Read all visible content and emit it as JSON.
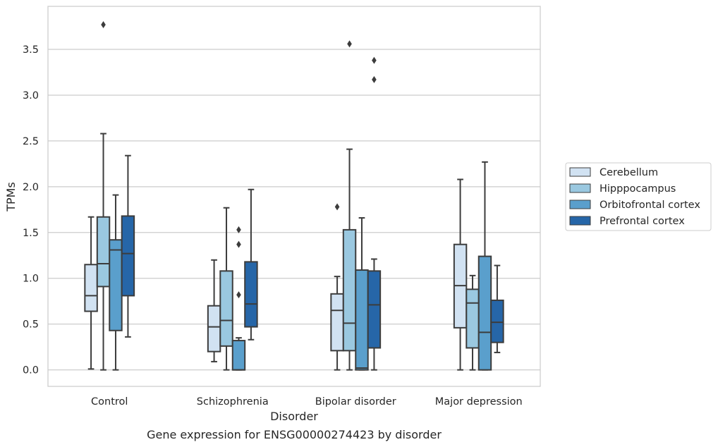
{
  "chart_data": {
    "type": "box",
    "caption": "Gene expression for ENSG00000274423 by disorder",
    "xlabel": "Disorder",
    "ylabel": "TPMs",
    "ylim": [
      -0.18,
      3.97
    ],
    "yticks": [
      "0.0",
      "0.5",
      "1.0",
      "1.5",
      "2.0",
      "2.5",
      "3.0",
      "3.5"
    ],
    "categories": [
      "Control",
      "Schizophrenia",
      "Bipolar disorder",
      "Major depression"
    ],
    "grid": true,
    "legend_position": "right",
    "series": [
      {
        "name": "Cerebellum",
        "color": "#d1e2f2",
        "boxes": [
          {
            "whisker_low": 0.01,
            "q1": 0.64,
            "median": 0.81,
            "q3": 1.15,
            "whisker_high": 1.67,
            "outliers": []
          },
          {
            "whisker_low": 0.09,
            "q1": 0.2,
            "median": 0.47,
            "q3": 0.7,
            "whisker_high": 1.2,
            "outliers": []
          },
          {
            "whisker_low": 0.0,
            "q1": 0.21,
            "median": 0.65,
            "q3": 0.83,
            "whisker_high": 1.02,
            "outliers": [
              1.78
            ]
          },
          {
            "whisker_low": 0.0,
            "q1": 0.46,
            "median": 0.92,
            "q3": 1.37,
            "whisker_high": 2.08,
            "outliers": []
          }
        ]
      },
      {
        "name": "Hipppocampus",
        "color": "#9ac8e0",
        "boxes": [
          {
            "whisker_low": 0.0,
            "q1": 0.91,
            "median": 1.16,
            "q3": 1.67,
            "whisker_high": 2.58,
            "outliers": [
              3.77
            ]
          },
          {
            "whisker_low": 0.0,
            "q1": 0.26,
            "median": 0.54,
            "q3": 1.08,
            "whisker_high": 1.77,
            "outliers": []
          },
          {
            "whisker_low": 0.0,
            "q1": 0.21,
            "median": 0.51,
            "q3": 1.53,
            "whisker_high": 2.41,
            "outliers": [
              3.56
            ]
          },
          {
            "whisker_low": 0.0,
            "q1": 0.24,
            "median": 0.73,
            "q3": 0.88,
            "whisker_high": 1.03,
            "outliers": []
          }
        ]
      },
      {
        "name": "Orbitofrontal cortex",
        "color": "#5a9fcc",
        "boxes": [
          {
            "whisker_low": 0.0,
            "q1": 0.43,
            "median": 1.31,
            "q3": 1.42,
            "whisker_high": 1.91,
            "outliers": []
          },
          {
            "whisker_low": 0.0,
            "q1": 0.0,
            "median": 0.0,
            "q3": 0.32,
            "whisker_high": 0.35,
            "outliers": [
              1.53,
              1.37,
              0.82
            ]
          },
          {
            "whisker_low": 0.0,
            "q1": 0.0,
            "median": 0.02,
            "q3": 1.09,
            "whisker_high": 1.66,
            "outliers": []
          },
          {
            "whisker_low": 0.0,
            "q1": 0.0,
            "median": 0.41,
            "q3": 1.24,
            "whisker_high": 2.27,
            "outliers": []
          }
        ]
      },
      {
        "name": "Prefrontal cortex",
        "color": "#2666a8",
        "boxes": [
          {
            "whisker_low": 0.36,
            "q1": 0.81,
            "median": 1.27,
            "q3": 1.68,
            "whisker_high": 2.34,
            "outliers": []
          },
          {
            "whisker_low": 0.33,
            "q1": 0.47,
            "median": 0.72,
            "q3": 1.18,
            "whisker_high": 1.97,
            "outliers": []
          },
          {
            "whisker_low": 0.0,
            "q1": 0.24,
            "median": 0.71,
            "q3": 1.08,
            "whisker_high": 1.21,
            "outliers": [
              3.38,
              3.17
            ]
          },
          {
            "whisker_low": 0.19,
            "q1": 0.3,
            "median": 0.52,
            "q3": 0.76,
            "whisker_high": 1.14,
            "outliers": []
          }
        ]
      }
    ]
  }
}
